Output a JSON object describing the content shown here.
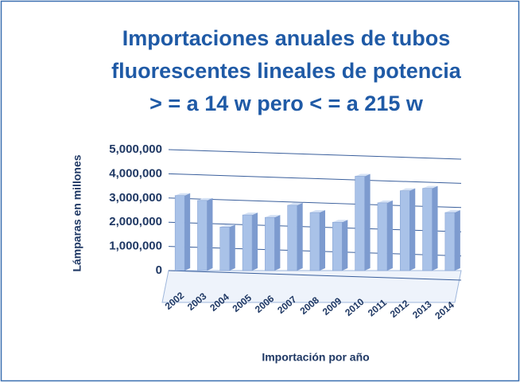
{
  "chart_data": {
    "type": "bar",
    "title": [
      "Importaciones anuales de tubos",
      "fluorescentes lineales de potencia",
      "> = a 14 w pero < = a 215 w"
    ],
    "y_label": "Lámparas  en millones",
    "x_label": "Importación por año",
    "categories": [
      "2002",
      "2003",
      "2004",
      "2005",
      "2006",
      "2007",
      "2008",
      "2009",
      "2010",
      "2011",
      "2012",
      "2013",
      "2014"
    ],
    "values": [
      3100000,
      2900000,
      1800000,
      2300000,
      2200000,
      2700000,
      2400000,
      2000000,
      3900000,
      2800000,
      3300000,
      3400000,
      2400000
    ],
    "color": "#a9c2e8",
    "ylim": [
      0,
      5000000
    ],
    "yticks": [
      0,
      {
        "value": 1000000,
        "label": "1,000,000"
      },
      {
        "value": 2000000,
        "label": "2,000,000"
      },
      {
        "value": 3000000,
        "label": "3,000,000"
      },
      {
        "value": 4000000,
        "label": "4,000,000"
      },
      {
        "value": 5000000,
        "label": "5,000,000"
      }
    ],
    "grid": true
  }
}
